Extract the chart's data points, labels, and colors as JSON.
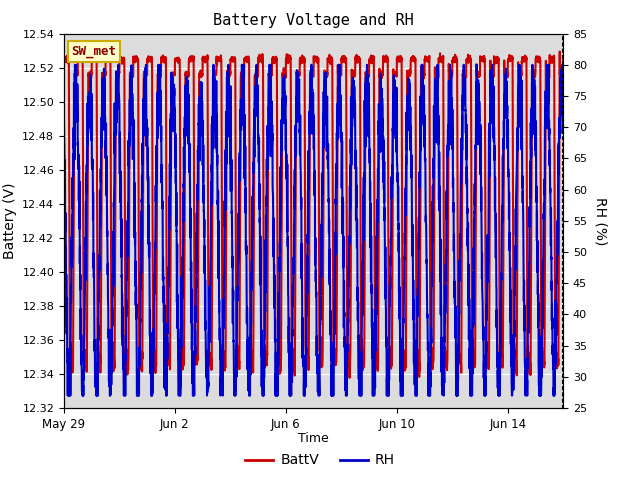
{
  "title": "Battery Voltage and RH",
  "xlabel": "Time",
  "ylabel_left": "Battery (V)",
  "ylabel_right": "RH (%)",
  "legend_label": "SW_met",
  "series": [
    "BattV",
    "RH"
  ],
  "series_colors": [
    "#cc0000",
    "#0000cc"
  ],
  "ylim_left": [
    12.32,
    12.54
  ],
  "ylim_right": [
    25,
    85
  ],
  "yticks_left": [
    12.32,
    12.34,
    12.36,
    12.38,
    12.4,
    12.42,
    12.44,
    12.46,
    12.48,
    12.5,
    12.52,
    12.54
  ],
  "yticks_right": [
    25,
    30,
    35,
    40,
    45,
    50,
    55,
    60,
    65,
    70,
    75,
    80,
    85
  ],
  "xtick_labels": [
    "May 29",
    "Jun 2",
    "Jun 6",
    "Jun 10",
    "Jun 14"
  ],
  "xtick_positions": [
    0,
    4,
    8,
    12,
    16
  ],
  "xlim": [
    0,
    18
  ],
  "background_color": "#ffffff",
  "plot_bg_color": "#dcdcdc",
  "grid_color": "#ffffff",
  "legend_box_facecolor": "#ffffcc",
  "legend_box_edgecolor": "#ccaa00",
  "legend_label_color": "#880000",
  "cycles_per_day": 2.0,
  "n_days": 18,
  "n_points": 3600,
  "batt_high": 12.525,
  "batt_low": 12.345,
  "rh_high": 78,
  "rh_low": 30,
  "linewidth": 1.5
}
